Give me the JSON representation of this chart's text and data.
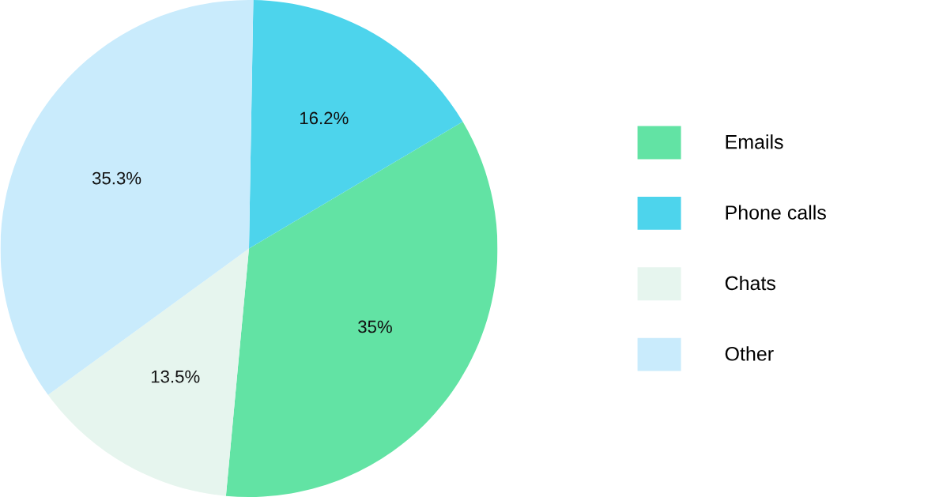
{
  "chart_data": {
    "type": "pie",
    "categories": [
      "Emails",
      "Phone calls",
      "Chats",
      "Other"
    ],
    "values": [
      35,
      16.2,
      13.5,
      35.3
    ],
    "value_labels": [
      "35%",
      "16.2%",
      "13.5%",
      "35.3%"
    ],
    "colors": [
      "#62e3a4",
      "#4dd4ec",
      "#e6f5ee",
      "#c9ebfc"
    ],
    "legend": "right"
  }
}
